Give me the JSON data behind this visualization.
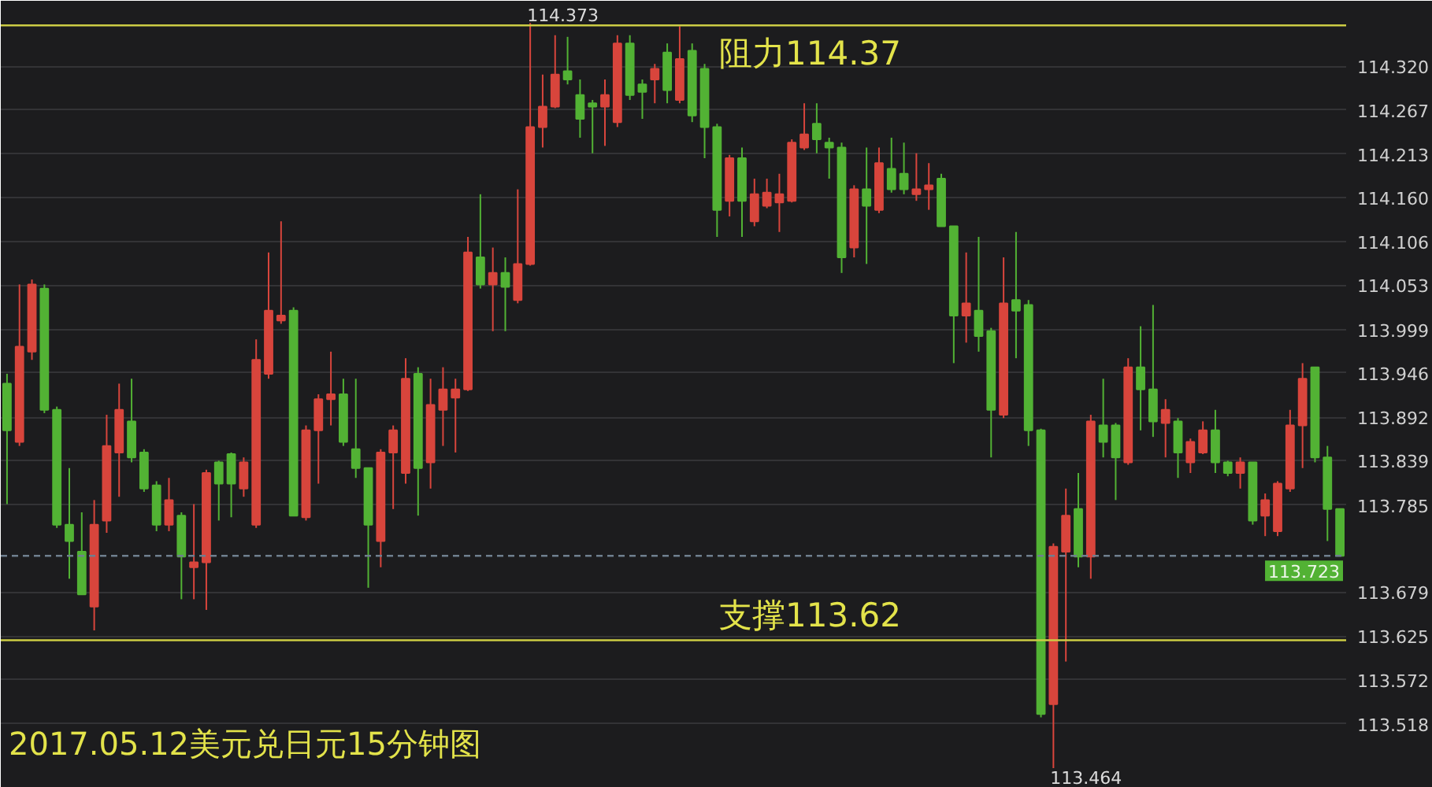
{
  "chart_data": {
    "type": "candlestick",
    "title": "2017.05.12美元兑日元15分钟图",
    "categories": [
      null,
      null,
      null,
      null,
      null,
      null,
      null,
      null,
      null,
      null,
      null,
      null,
      null,
      null,
      null,
      null,
      null,
      null,
      null,
      null,
      null,
      null,
      null,
      null,
      null,
      null,
      null,
      null,
      null,
      null,
      null,
      null,
      null,
      null,
      null,
      null,
      null,
      null,
      null,
      null,
      null,
      null,
      null,
      null,
      null,
      null,
      null,
      null,
      null,
      null,
      null,
      null,
      null,
      null,
      null,
      null,
      null,
      null,
      null,
      null,
      null,
      null,
      null,
      null,
      null,
      null,
      null,
      null,
      null,
      null,
      null,
      null,
      null,
      null,
      null,
      null,
      null,
      null,
      null,
      null,
      null,
      null,
      null,
      null,
      null,
      null,
      null,
      null,
      null,
      null,
      null,
      null,
      null,
      null,
      null,
      null,
      null,
      null,
      null,
      null,
      null,
      null,
      null,
      null,
      null,
      null,
      null,
      null
    ],
    "ohlc": [
      [
        113.933,
        113.945,
        113.786,
        113.876
      ],
      [
        113.862,
        114.054,
        113.857,
        113.978
      ],
      [
        113.972,
        114.06,
        113.962,
        114.054
      ],
      [
        114.049,
        114.054,
        113.897,
        113.901
      ],
      [
        113.901,
        113.905,
        113.757,
        113.761
      ],
      [
        113.761,
        113.83,
        113.695,
        113.741
      ],
      [
        113.728,
        113.776,
        113.676,
        113.676
      ],
      [
        113.661,
        113.791,
        113.632,
        113.761
      ],
      [
        113.766,
        113.895,
        113.751,
        113.857
      ],
      [
        113.849,
        113.933,
        113.795,
        113.901
      ],
      [
        113.887,
        113.939,
        113.837,
        113.843
      ],
      [
        113.849,
        113.853,
        113.801,
        113.805
      ],
      [
        113.809,
        113.814,
        113.753,
        113.761
      ],
      [
        113.761,
        113.818,
        113.753,
        113.791
      ],
      [
        113.772,
        113.776,
        113.67,
        113.722
      ],
      [
        113.709,
        113.786,
        113.67,
        113.715
      ],
      [
        113.715,
        113.828,
        113.657,
        113.824
      ],
      [
        113.837,
        113.839,
        113.766,
        113.811
      ],
      [
        113.847,
        113.849,
        113.77,
        113.811
      ],
      [
        113.805,
        113.843,
        113.795,
        113.837
      ],
      [
        113.761,
        113.987,
        113.757,
        113.962
      ],
      [
        113.945,
        114.093,
        113.939,
        114.022
      ],
      [
        114.01,
        114.131,
        114.006,
        114.016
      ],
      [
        114.022,
        114.026,
        113.772,
        113.772
      ],
      [
        113.77,
        113.882,
        113.766,
        113.876
      ],
      [
        113.876,
        113.92,
        113.811,
        113.914
      ],
      [
        113.914,
        113.972,
        113.882,
        113.92
      ],
      [
        113.92,
        113.939,
        113.857,
        113.862
      ],
      [
        113.853,
        113.939,
        113.818,
        113.83
      ],
      [
        113.83,
        113.83,
        113.684,
        113.761
      ],
      [
        113.741,
        113.853,
        113.709,
        113.849
      ],
      [
        113.849,
        113.882,
        113.78,
        113.876
      ],
      [
        113.824,
        113.964,
        113.811,
        113.939
      ],
      [
        113.945,
        113.953,
        113.772,
        113.83
      ],
      [
        113.837,
        113.939,
        113.805,
        113.907
      ],
      [
        113.901,
        113.953,
        113.857,
        113.926
      ],
      [
        113.916,
        113.939,
        113.849,
        113.926
      ],
      [
        113.926,
        114.112,
        113.924,
        114.093
      ],
      [
        114.087,
        114.164,
        114.049,
        114.054
      ],
      [
        114.054,
        114.099,
        113.997,
        114.068
      ],
      [
        114.068,
        114.087,
        113.997,
        114.051
      ],
      [
        114.035,
        114.17,
        114.031,
        114.079
      ],
      [
        114.079,
        114.373,
        114.077,
        114.246
      ],
      [
        114.246,
        114.31,
        114.221,
        114.271
      ],
      [
        114.271,
        114.358,
        114.269,
        114.31
      ],
      [
        114.314,
        114.356,
        114.298,
        114.304
      ],
      [
        114.285,
        114.304,
        114.233,
        114.256
      ],
      [
        114.275,
        114.279,
        114.214,
        114.271
      ],
      [
        114.271,
        114.304,
        114.223,
        114.285
      ],
      [
        114.252,
        114.358,
        114.246,
        114.348
      ],
      [
        114.348,
        114.358,
        114.279,
        114.285
      ],
      [
        114.298,
        114.304,
        114.256,
        114.289
      ],
      [
        114.304,
        114.323,
        114.275,
        114.317
      ],
      [
        114.337,
        114.348,
        114.275,
        114.291
      ],
      [
        114.279,
        114.369,
        114.275,
        114.329
      ],
      [
        114.339,
        114.348,
        114.252,
        114.26
      ],
      [
        114.317,
        114.323,
        114.208,
        114.246
      ],
      [
        114.246,
        114.25,
        114.112,
        114.145
      ],
      [
        114.156,
        114.212,
        114.137,
        114.208
      ],
      [
        114.208,
        114.221,
        114.112,
        114.156
      ],
      [
        114.131,
        114.183,
        114.125,
        114.164
      ],
      [
        114.15,
        114.183,
        114.147,
        114.166
      ],
      [
        114.154,
        114.189,
        114.118,
        114.164
      ],
      [
        114.156,
        114.231,
        114.154,
        114.227
      ],
      [
        114.221,
        114.275,
        114.218,
        114.237
      ],
      [
        114.25,
        114.275,
        114.214,
        114.231
      ],
      [
        114.227,
        114.233,
        114.183,
        114.221
      ],
      [
        114.221,
        114.227,
        114.068,
        114.087
      ],
      [
        114.099,
        114.175,
        114.087,
        114.17
      ],
      [
        114.17,
        114.221,
        114.079,
        114.15
      ],
      [
        114.145,
        114.221,
        114.141,
        114.202
      ],
      [
        114.195,
        114.233,
        114.166,
        114.17
      ],
      [
        114.189,
        114.227,
        114.164,
        114.17
      ],
      [
        114.164,
        114.214,
        114.156,
        114.17
      ],
      [
        114.17,
        114.202,
        114.145,
        114.175
      ],
      [
        114.183,
        114.189,
        114.125,
        114.125
      ],
      [
        114.125,
        114.125,
        113.958,
        114.016
      ],
      [
        114.016,
        114.093,
        113.983,
        114.031
      ],
      [
        114.022,
        114.112,
        113.972,
        113.991
      ],
      [
        113.997,
        114.001,
        113.843,
        113.901
      ],
      [
        113.895,
        114.087,
        113.891,
        114.031
      ],
      [
        114.035,
        114.118,
        113.964,
        114.022
      ],
      [
        114.029,
        114.035,
        113.857,
        113.876
      ],
      [
        113.876,
        113.878,
        113.526,
        113.53
      ],
      [
        113.542,
        113.738,
        113.464,
        113.734
      ],
      [
        113.728,
        113.805,
        113.594,
        113.772
      ],
      [
        113.78,
        113.824,
        113.709,
        113.722
      ],
      [
        113.722,
        113.895,
        113.695,
        113.887
      ],
      [
        113.882,
        113.939,
        113.843,
        113.862
      ],
      [
        113.882,
        113.885,
        113.791,
        113.843
      ],
      [
        113.837,
        113.964,
        113.834,
        113.953
      ],
      [
        113.953,
        114.003,
        113.876,
        113.926
      ],
      [
        113.926,
        114.029,
        113.868,
        113.887
      ],
      [
        113.885,
        113.914,
        113.843,
        113.901
      ],
      [
        113.887,
        113.891,
        113.818,
        113.849
      ],
      [
        113.837,
        113.866,
        113.824,
        113.862
      ],
      [
        113.849,
        113.887,
        113.847,
        113.876
      ],
      [
        113.876,
        113.901,
        113.824,
        113.837
      ],
      [
        113.837,
        113.839,
        113.82,
        113.824
      ],
      [
        113.824,
        113.843,
        113.805,
        113.837
      ],
      [
        113.837,
        113.837,
        113.761,
        113.766
      ],
      [
        113.772,
        113.799,
        113.747,
        113.791
      ],
      [
        113.753,
        113.814,
        113.747,
        113.811
      ],
      [
        113.805,
        113.901,
        113.801,
        113.882
      ],
      [
        113.882,
        113.958,
        113.83,
        113.939
      ],
      [
        113.953,
        113.953,
        113.837,
        113.843
      ],
      [
        113.843,
        113.857,
        113.741,
        113.78
      ],
      [
        113.78,
        113.78,
        113.723,
        113.723
      ]
    ],
    "colors": [
      "#52b234",
      "#d8453c",
      "#d8453c",
      "#52b234",
      "#52b234",
      "#52b234",
      "#52b234",
      "#d8453c",
      "#d8453c",
      "#d8453c",
      "#52b234",
      "#52b234",
      "#52b234",
      "#d8453c",
      "#52b234",
      "#d8453c",
      "#d8453c",
      "#52b234",
      "#52b234",
      "#d8453c",
      "#d8453c",
      "#d8453c",
      "#d8453c",
      "#52b234",
      "#d8453c",
      "#d8453c",
      "#d8453c",
      "#52b234",
      "#52b234",
      "#52b234",
      "#d8453c",
      "#d8453c",
      "#d8453c",
      "#52b234",
      "#d8453c",
      "#d8453c",
      "#d8453c",
      "#d8453c",
      "#52b234",
      "#d8453c",
      "#52b234",
      "#d8453c",
      "#d8453c",
      "#d8453c",
      "#d8453c",
      "#52b234",
      "#52b234",
      "#52b234",
      "#d8453c",
      "#d8453c",
      "#52b234",
      "#52b234",
      "#d8453c",
      "#52b234",
      "#d8453c",
      "#52b234",
      "#52b234",
      "#52b234",
      "#d8453c",
      "#52b234",
      "#d8453c",
      "#d8453c",
      "#d8453c",
      "#d8453c",
      "#d8453c",
      "#52b234",
      "#52b234",
      "#52b234",
      "#d8453c",
      "#52b234",
      "#d8453c",
      "#52b234",
      "#52b234",
      "#d8453c",
      "#d8453c",
      "#52b234",
      "#52b234",
      "#d8453c",
      "#52b234",
      "#52b234",
      "#d8453c",
      "#52b234",
      "#52b234",
      "#52b234",
      "#d8453c",
      "#d8453c",
      "#52b234",
      "#d8453c",
      "#52b234",
      "#52b234",
      "#d8453c",
      "#52b234",
      "#52b234",
      "#d8453c",
      "#52b234",
      "#d8453c",
      "#d8453c",
      "#52b234",
      "#52b234",
      "#d8453c",
      "#52b234",
      "#d8453c",
      "#d8453c",
      "#d8453c",
      "#d8453c",
      "#52b234",
      "#52b234",
      "#52b234"
    ],
    "ylim": [
      113.44,
      114.4
    ],
    "yticks": [
      {
        "value": 114.32,
        "label": "114.320"
      },
      114.267,
      114.213,
      {
        "value": 114.16,
        "label": "114.160"
      },
      114.106,
      114.053,
      113.999,
      113.946,
      113.892,
      113.839,
      113.785,
      113.679,
      113.625,
      113.572,
      113.518
    ],
    "grid": "y",
    "tick_labels": "y",
    "ref_lines": [
      {
        "axis": "y",
        "value": 114.37,
        "label": "阻力114.37",
        "color": "#cccc44"
      },
      {
        "axis": "y",
        "value": 113.62,
        "label": "支撑113.62",
        "color": "#cccc44"
      },
      {
        "axis": "y",
        "value": 113.723,
        "label": "113.723",
        "color": "#6f7f8f",
        "line_style": "dashed"
      }
    ],
    "annotations": [
      "114.373",
      "113.464"
    ]
  }
}
